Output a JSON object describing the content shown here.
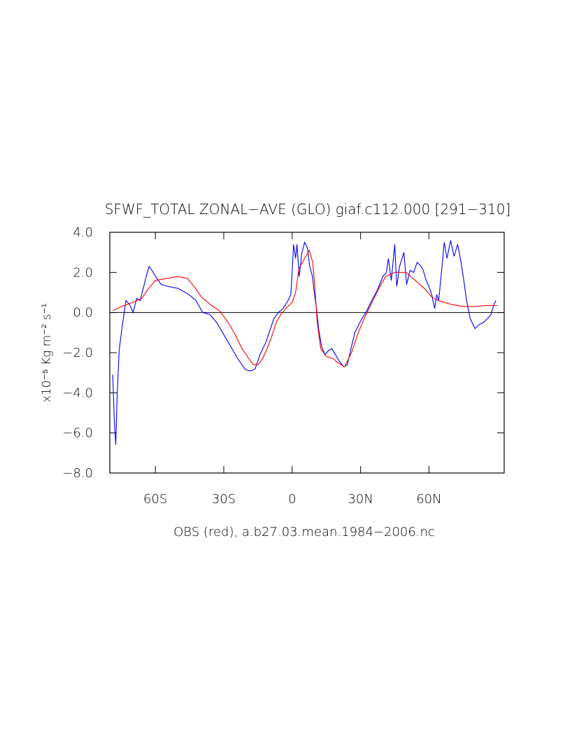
{
  "chart_data": {
    "type": "line",
    "title": "SFWF_TOTAL ZONAL−AVE (GLO) giaf.c112.000 [291−310]",
    "xlabel": "OBS (red), a.b27.03.mean.1984−2006.nc",
    "ylabel": "x10⁻⁵ Kg m⁻² s⁻¹",
    "xlim": [
      -80,
      93
    ],
    "ylim": [
      -8,
      4
    ],
    "xticks": [
      {
        "value": -60,
        "label": "60S"
      },
      {
        "value": -30,
        "label": "30S"
      },
      {
        "value": 0,
        "label": "0"
      },
      {
        "value": 30,
        "label": "30N"
      },
      {
        "value": 60,
        "label": "60N"
      }
    ],
    "yticks": [
      {
        "value": -8,
        "label": "−8.0"
      },
      {
        "value": -6,
        "label": "−6.0"
      },
      {
        "value": -4,
        "label": "−4.0"
      },
      {
        "value": -2,
        "label": "−2.0"
      },
      {
        "value": 0,
        "label": "0.0"
      },
      {
        "value": 2,
        "label": "2.0"
      },
      {
        "value": 4,
        "label": "4.0"
      }
    ],
    "reference_line": 0,
    "series": [
      {
        "color": "#0000ff",
        "x": [
          -78.7,
          -78,
          -77.4,
          -76.8,
          -75.9,
          -74.7,
          -73.8,
          -72.9,
          -71.3,
          -69.8,
          -68.2,
          -66.7,
          -65.1,
          -63.6,
          -62.7,
          -61.5,
          -59.9,
          -57.5,
          -54.4,
          -49.9,
          -45.3,
          -42.2,
          -39.2,
          -36.1,
          -33.1,
          -30,
          -26.9,
          -23.9,
          -20.8,
          -19.3,
          -17.8,
          -16.2,
          -14.1,
          -11.6,
          -10.1,
          -8,
          -6.1,
          -4,
          -1.8,
          -0.6,
          0,
          0.6,
          1.5,
          2.1,
          3.1,
          4.3,
          5.5,
          6.7,
          7.7,
          8.9,
          9.8,
          10.7,
          11.6,
          12.9,
          14.4,
          15.9,
          17.4,
          19,
          20.5,
          22.7,
          24.2,
          26,
          27.5,
          28.8,
          30.6,
          32.8,
          34.9,
          37.3,
          39.8,
          41.3,
          42.2,
          43.5,
          45,
          45.9,
          47.1,
          49,
          50.2,
          51.7,
          53.3,
          54.8,
          56.6,
          57.5,
          58.8,
          60,
          61.2,
          62.5,
          63.4,
          64.3,
          65.5,
          66.7,
          67.9,
          69.5,
          71,
          72.6,
          74.1,
          75.3,
          76.5,
          78.1,
          80.2,
          82,
          83.9,
          85.7,
          87.2,
          88.5,
          89.4
        ],
        "values": [
          -3.1,
          -5.4,
          -6.6,
          -4.3,
          -1.9,
          -0.8,
          -0.1,
          0.6,
          0.4,
          0,
          0.7,
          0.6,
          1.3,
          2,
          2.3,
          2.1,
          1.8,
          1.4,
          1.3,
          1.2,
          0.9,
          0.6,
          0,
          -0.1,
          -0.5,
          -1.1,
          -1.7,
          -2.3,
          -2.8,
          -2.9,
          -2.9,
          -2.8,
          -2.1,
          -1.5,
          -1,
          -0.3,
          0,
          0.2,
          0.6,
          0.9,
          2,
          3.4,
          2.7,
          3.4,
          1.8,
          3,
          3.5,
          3.2,
          2.3,
          1.8,
          0.9,
          0.2,
          -0.8,
          -1.7,
          -2.1,
          -1.9,
          -1.8,
          -2.1,
          -2.4,
          -2.7,
          -2.6,
          -1.7,
          -1,
          -0.7,
          -0.3,
          0.1,
          0.6,
          1.1,
          1.8,
          2,
          2.7,
          1.6,
          3.4,
          1.3,
          2.3,
          3,
          1.4,
          2.1,
          2,
          2.5,
          2.3,
          2.1,
          1.6,
          1.3,
          0.9,
          0.2,
          0.9,
          0.6,
          2,
          3.5,
          2.7,
          3.6,
          2.8,
          3.4,
          2.5,
          1.6,
          0.6,
          -0.3,
          -0.8,
          -0.6,
          -0.5,
          -0.3,
          -0.1,
          0.4,
          0.6
        ]
      },
      {
        "color": "#ff0000",
        "x": [
          -78.5,
          -75,
          -70,
          -66,
          -63,
          -60,
          -55,
          -50,
          -46,
          -43,
          -40,
          -36,
          -32,
          -28,
          -25,
          -22,
          -19,
          -17,
          -15,
          -13,
          -11,
          -9,
          -7,
          -5,
          -2,
          0,
          1.5,
          3,
          4.5,
          6,
          7.5,
          9,
          10,
          11,
          12.5,
          15,
          18,
          20,
          23,
          26,
          29,
          32,
          35,
          38,
          41,
          45,
          50,
          55,
          58,
          61,
          64,
          67,
          70,
          75,
          80,
          85,
          90
        ],
        "values": [
          0.1,
          0.3,
          0.5,
          0.7,
          1.2,
          1.6,
          1.7,
          1.8,
          1.7,
          1.3,
          0.8,
          0.4,
          0.1,
          -0.5,
          -1.1,
          -1.8,
          -2.3,
          -2.6,
          -2.6,
          -2.3,
          -1.8,
          -1.2,
          -0.5,
          -0.1,
          0.3,
          0.5,
          1,
          2.2,
          2.5,
          2.8,
          3.1,
          2.5,
          1.2,
          -0.5,
          -1.8,
          -2.2,
          -2.3,
          -2.5,
          -2.7,
          -2,
          -1,
          -0.2,
          0.5,
          1.2,
          1.8,
          2,
          2,
          1.5,
          1.2,
          0.8,
          0.6,
          0.5,
          0.4,
          0.3,
          0.3,
          0.35,
          0.35
        ]
      }
    ]
  }
}
